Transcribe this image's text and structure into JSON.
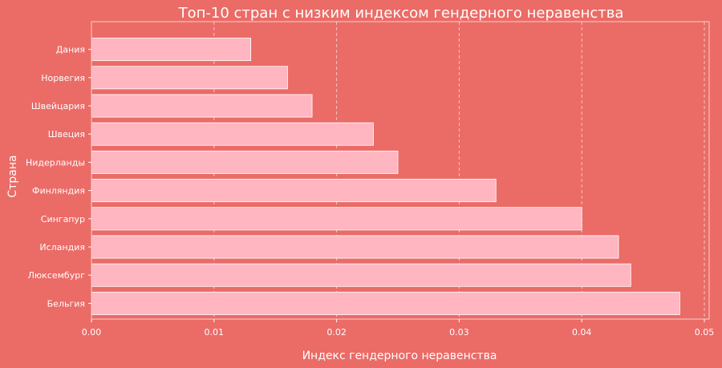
{
  "chart_data": {
    "type": "bar",
    "orientation": "horizontal",
    "title": "Топ-10 стран с низким индексом гендерного неравенства",
    "xlabel": "Индекс гендерного неравенства",
    "ylabel": "Страна",
    "categories": [
      "Дания",
      "Норвегия",
      "Швейцария",
      "Швеция",
      "Нидерланды",
      "Финляндия",
      "Сингапур",
      "Исландия",
      "Люксембург",
      "Бельгия"
    ],
    "values": [
      0.013,
      0.016,
      0.018,
      0.023,
      0.025,
      0.033,
      0.04,
      0.043,
      0.044,
      0.048
    ],
    "xlim": [
      0.0,
      0.05
    ],
    "xticks": [
      "0.00",
      "0.01",
      "0.02",
      "0.03",
      "0.04",
      "0.05"
    ],
    "grid": "vertical-dashed",
    "colors": {
      "background": "#EB6B66",
      "bar": "#FFB6C1",
      "text": "#FFFFFF",
      "grid": "#F4C4C2"
    }
  }
}
